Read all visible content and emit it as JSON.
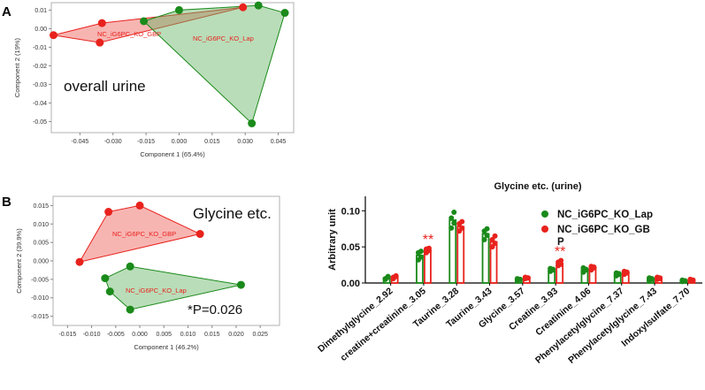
{
  "panel_labels": {
    "a": "A",
    "b": "B"
  },
  "chart_data": [
    {
      "type": "scatter",
      "panel": "A",
      "xlabel": "Component 1 (65.4%)",
      "ylabel": "Component 2 (19%)",
      "xlim": [
        -0.058,
        0.052
      ],
      "ylim": [
        -0.056,
        0.014
      ],
      "xticks": [
        "-0.045",
        "-0.030",
        "-0.015",
        "0.000",
        "0.015",
        "0.030",
        "0.045"
      ],
      "yticks": [
        "0.01",
        "0.00",
        "-0.01",
        "-0.02",
        "-0.03",
        "-0.04",
        "-0.05"
      ],
      "annotation": "overall urine",
      "colors": {
        "gbp": "#e8221d",
        "lap": "#1a8a1a"
      },
      "groups": [
        {
          "name": "NC_iG6PC_KO_GBP",
          "color": "#e8221d",
          "points": [
            [
              -0.057,
              -0.0035
            ],
            [
              -0.036,
              -0.0075
            ],
            [
              -0.035,
              0.003
            ],
            [
              0.029,
              0.0115
            ]
          ]
        },
        {
          "name": "NC_iG6PC_KO_Lap",
          "color": "#1a8a1a",
          "points": [
            [
              -0.016,
              0.004
            ],
            [
              0.0,
              0.01
            ],
            [
              0.033,
              -0.051
            ],
            [
              0.036,
              0.0125
            ],
            [
              0.048,
              0.0085
            ]
          ]
        }
      ]
    },
    {
      "type": "scatter",
      "panel": "B",
      "xlabel": "Component 1 (46.2%)",
      "ylabel": "Component  2 (39.9%)",
      "xlim": [
        -0.018,
        0.029
      ],
      "ylim": [
        -0.0175,
        0.0175
      ],
      "xticks": [
        "-0.015",
        "-0.010",
        "-0.005",
        "0.000",
        "0.005",
        "0.010",
        "0.015",
        "0.020",
        "0.025"
      ],
      "yticks": [
        "0.015",
        "0.010",
        "0.005",
        "0.000",
        "-0.005",
        "-0.010",
        "-0.015"
      ],
      "annotation": "Glycine etc.",
      "pvalue": "*P=0.026",
      "groups": [
        {
          "name": "NC_iG6PC_KO_GBP",
          "color": "#e8221d",
          "points": [
            [
              -0.0125,
              -0.0003
            ],
            [
              -0.0065,
              0.0133
            ],
            [
              0.0,
              0.015
            ],
            [
              0.0125,
              0.0073
            ]
          ]
        },
        {
          "name": "NC_iG6PC_KO_Lap",
          "color": "#1a8a1a",
          "points": [
            [
              -0.0072,
              -0.0047
            ],
            [
              -0.0062,
              -0.0083
            ],
            [
              -0.002,
              -0.0015
            ],
            [
              -0.002,
              -0.0132
            ],
            [
              0.021,
              -0.0065
            ]
          ]
        }
      ]
    },
    {
      "type": "bar",
      "panel": "B-right",
      "title": "Glycine etc. (urine)",
      "ylabel": "Arbitrary unit",
      "ylim": [
        0,
        0.12
      ],
      "yticks": [
        "0.00",
        "0.05",
        "0.10"
      ],
      "categories": [
        "Dimethylglycine_2.92",
        "creatine+creatinine_3.05",
        "Taurine_3.28",
        "Taurine_3.43",
        "Glycine_3.57",
        "Creatine_3.93",
        "Creatinine_4.06",
        "Phenylacetylglycine_7.37",
        "Phenylacetylglycine_7.43",
        "Indoxylsulfate_7.70"
      ],
      "legend": [
        "NC_iG6PC_KO_Lap",
        "NC_iG6PC_KO_GB",
        "P"
      ],
      "significance": [
        {
          "category": "creatine+creatinine_3.05",
          "label": "**"
        },
        {
          "category": "Creatine_3.93",
          "label": "**"
        }
      ],
      "series": [
        {
          "name": "NC_iG6PC_KO_Lap",
          "color": "#1a8a1a",
          "values": [
            0.007,
            0.038,
            0.087,
            0.068,
            0.005,
            0.018,
            0.018,
            0.012,
            0.006,
            0.003
          ],
          "points": [
            [
              0.006,
              0.008,
              0.005,
              0.009
            ],
            [
              0.032,
              0.036,
              0.042,
              0.044
            ],
            [
              0.076,
              0.083,
              0.09,
              0.098
            ],
            [
              0.06,
              0.066,
              0.072,
              0.075
            ],
            [
              0.004,
              0.005,
              0.006,
              0.005
            ],
            [
              0.016,
              0.018,
              0.02,
              0.019
            ],
            [
              0.015,
              0.018,
              0.021,
              0.019
            ],
            [
              0.01,
              0.012,
              0.014,
              0.013
            ],
            [
              0.004,
              0.006,
              0.007,
              0.005
            ],
            [
              0.002,
              0.003,
              0.004,
              0.003
            ]
          ]
        },
        {
          "name": "NC_iG6PC_KO_GBP",
          "color": "#e8221d",
          "values": [
            0.008,
            0.045,
            0.078,
            0.057,
            0.007,
            0.027,
            0.021,
            0.014,
            0.007,
            0.004
          ],
          "points": [
            [
              0.006,
              0.009,
              0.008,
              0.01
            ],
            [
              0.042,
              0.045,
              0.047,
              0.048
            ],
            [
              0.072,
              0.076,
              0.082,
              0.085
            ],
            [
              0.05,
              0.055,
              0.06,
              0.065
            ],
            [
              0.006,
              0.007,
              0.008,
              0.007
            ],
            [
              0.024,
              0.026,
              0.029,
              0.031
            ],
            [
              0.018,
              0.021,
              0.023,
              0.022
            ],
            [
              0.012,
              0.014,
              0.016,
              0.015
            ],
            [
              0.005,
              0.007,
              0.008,
              0.006
            ],
            [
              0.003,
              0.004,
              0.005,
              0.004
            ]
          ]
        }
      ]
    }
  ]
}
